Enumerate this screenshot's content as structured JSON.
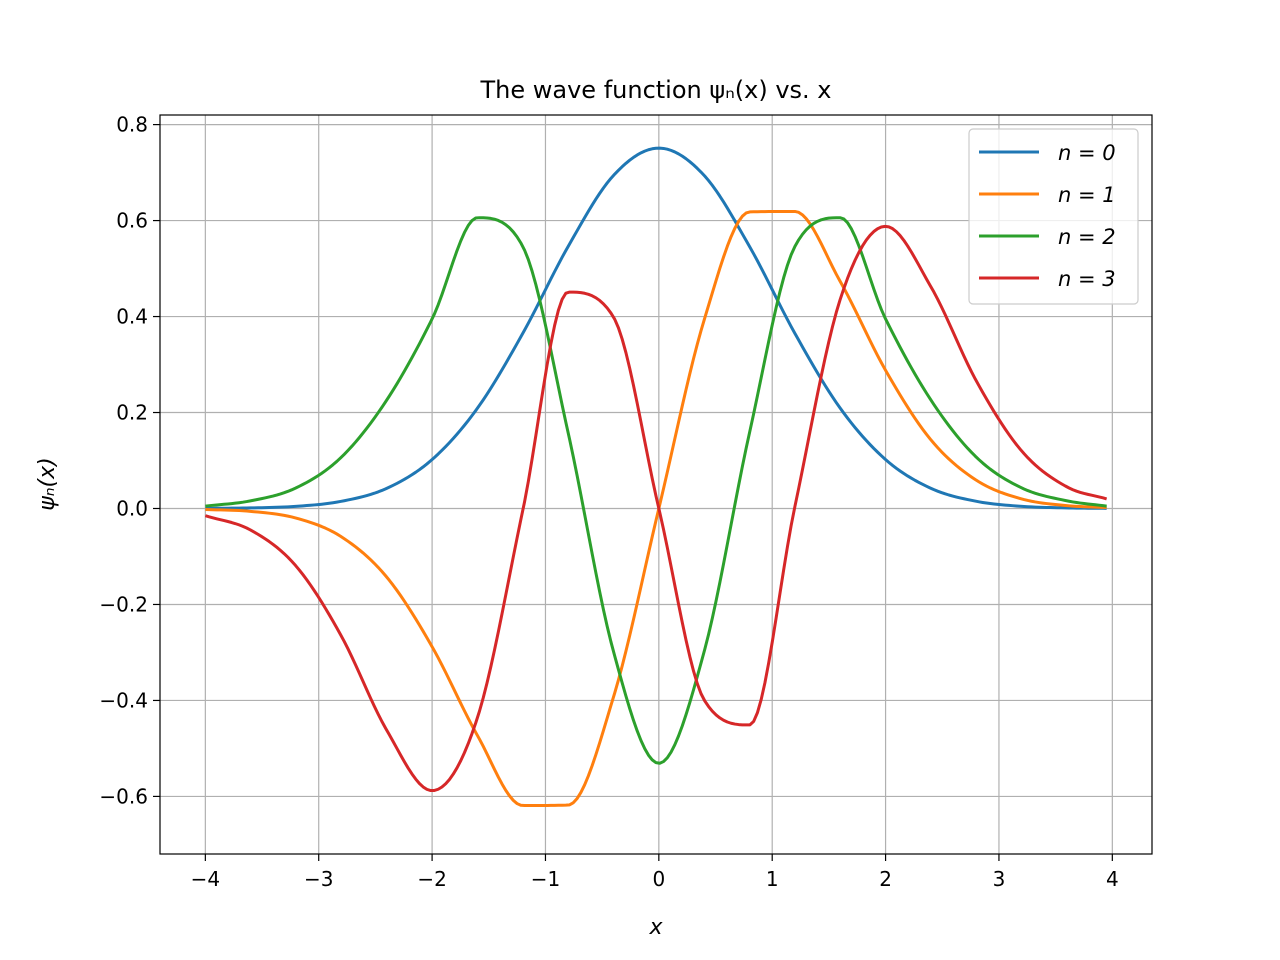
{
  "chart_data": {
    "type": "line",
    "title": "The wave function ψₙ(x) vs. x",
    "xlabel": "x",
    "ylabel": "ψₙ(x)",
    "xlim": [
      -4.4,
      4.35
    ],
    "ylim": [
      -0.72,
      0.82
    ],
    "xticks": [
      -4,
      -3,
      -2,
      -1,
      0,
      1,
      2,
      3,
      4
    ],
    "xtick_labels": [
      "−4",
      "−3",
      "−2",
      "−1",
      "0",
      "1",
      "2",
      "3",
      "4"
    ],
    "yticks": [
      -0.6,
      -0.4,
      -0.2,
      0.0,
      0.2,
      0.4,
      0.6,
      0.8
    ],
    "ytick_labels": [
      "−0.6",
      "−0.4",
      "−0.2",
      "0.0",
      "0.2",
      "0.4",
      "0.6",
      "0.8"
    ],
    "grid": true,
    "legend_position": "top-right",
    "x": [
      -4.0,
      -3.6,
      -3.2,
      -2.8,
      -2.4,
      -2.0,
      -1.6,
      -1.2,
      -0.8,
      -0.4,
      0.0,
      0.4,
      0.8,
      1.2,
      1.6,
      2.0,
      2.4,
      2.8,
      3.2,
      3.6,
      3.95
    ],
    "series": [
      {
        "name": "n = 0",
        "color": "#1f77b4",
        "values": [
          0.0003,
          0.0012,
          0.0045,
          0.015,
          0.042,
          0.102,
          0.209,
          0.365,
          0.546,
          0.694,
          0.751,
          0.694,
          0.546,
          0.365,
          0.209,
          0.102,
          0.042,
          0.015,
          0.0045,
          0.0012,
          0.0003
        ]
      },
      {
        "name": "n = 1",
        "color": "#ff7f0e",
        "values": [
          -0.002,
          -0.006,
          -0.02,
          -0.059,
          -0.143,
          -0.288,
          -0.473,
          -0.619,
          -0.618,
          -0.393,
          0.0,
          0.393,
          0.618,
          0.619,
          0.473,
          0.288,
          0.143,
          0.059,
          0.02,
          0.006,
          0.002
        ]
      },
      {
        "name": "n = 2",
        "color": "#2ca02c",
        "values": [
          0.005,
          0.016,
          0.043,
          0.107,
          0.226,
          0.395,
          0.606,
          0.546,
          0.158,
          -0.298,
          -0.531,
          -0.298,
          0.158,
          0.546,
          0.606,
          0.395,
          0.226,
          0.107,
          0.043,
          0.016,
          0.005
        ]
      },
      {
        "name": "n = 3",
        "color": "#d62728",
        "values": [
          -0.015,
          -0.045,
          -0.12,
          -0.266,
          -0.462,
          -0.588,
          -0.436,
          -0.004,
          0.451,
          0.399,
          0.0,
          -0.399,
          -0.451,
          0.004,
          0.436,
          0.588,
          0.462,
          0.266,
          0.12,
          0.045,
          0.02
        ]
      }
    ]
  }
}
